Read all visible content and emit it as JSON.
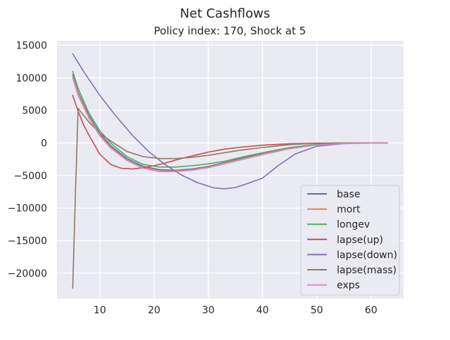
{
  "figure_title": "Net Cashflows",
  "chart_data": {
    "type": "line",
    "title": "Policy index: 170, Shock at 5",
    "xlabel": "",
    "ylabel": "",
    "xlim": [
      2.1,
      66.0
    ],
    "ylim": [
      -23900,
      15700
    ],
    "xticks": [
      10,
      20,
      30,
      40,
      50,
      60
    ],
    "yticks": [
      15000,
      10000,
      5000,
      0,
      -5000,
      -10000,
      -15000,
      -20000
    ],
    "grid": true,
    "legend_position": "lower-right",
    "series": [
      {
        "name": "base",
        "color": "#4c72b0",
        "x": [
          5,
          6,
          8,
          10,
          12,
          15,
          18,
          21,
          24,
          27,
          30,
          33,
          36,
          40,
          45,
          50,
          55,
          60,
          63
        ],
        "y": [
          10500,
          7800,
          4200,
          1500,
          -400,
          -2400,
          -3600,
          -4100,
          -4200,
          -4000,
          -3600,
          -3000,
          -2400,
          -1600,
          -800,
          -200,
          -50,
          0,
          0
        ]
      },
      {
        "name": "mort",
        "color": "#dd8452",
        "x": [
          5,
          6,
          8,
          10,
          12,
          15,
          18,
          21,
          24,
          27,
          30,
          33,
          36,
          40,
          45,
          50,
          55,
          60,
          63
        ],
        "y": [
          10300,
          7600,
          4000,
          1300,
          -600,
          -2600,
          -3800,
          -4300,
          -4300,
          -4100,
          -3700,
          -3100,
          -2500,
          -1700,
          -800,
          -200,
          -50,
          0,
          0
        ]
      },
      {
        "name": "longev",
        "color": "#55a868",
        "x": [
          5,
          6,
          8,
          10,
          12,
          15,
          18,
          21,
          24,
          27,
          30,
          33,
          36,
          40,
          45,
          50,
          55,
          60,
          63
        ],
        "y": [
          11000,
          8400,
          4600,
          1900,
          0,
          -2100,
          -3300,
          -3700,
          -3700,
          -3500,
          -3200,
          -2800,
          -2200,
          -1500,
          -700,
          -200,
          -50,
          0,
          0
        ]
      },
      {
        "name": "lapse(up)",
        "color": "#c44e52",
        "x": [
          5,
          6,
          7,
          8,
          10,
          12,
          14,
          16,
          18,
          20,
          22,
          25,
          28,
          30,
          33,
          36,
          40,
          45,
          50,
          55,
          60,
          63
        ],
        "y": [
          7300,
          4900,
          2800,
          1200,
          -1700,
          -3300,
          -3900,
          -4000,
          -3800,
          -3500,
          -3100,
          -2400,
          -1800,
          -1400,
          -950,
          -650,
          -350,
          -120,
          -30,
          0,
          0,
          0
        ]
      },
      {
        "name": "lapse(down)",
        "color": "#8172b2",
        "x": [
          5,
          7,
          10,
          13,
          16,
          19,
          22,
          25,
          28,
          31,
          33,
          35,
          37,
          40,
          43,
          46,
          50,
          55,
          60,
          63
        ],
        "y": [
          13700,
          11000,
          7300,
          4100,
          1200,
          -1300,
          -3300,
          -4900,
          -6100,
          -6900,
          -7050,
          -6850,
          -6300,
          -5400,
          -3400,
          -1700,
          -500,
          -100,
          -20,
          0
        ]
      },
      {
        "name": "lapse(mass)",
        "color": "#937860",
        "x": [
          5,
          5.5,
          6,
          8,
          10,
          12,
          15,
          18,
          21,
          24,
          27,
          30,
          33,
          36,
          40,
          45,
          50,
          55,
          60,
          63
        ],
        "y": [
          -22300,
          -8000,
          5300,
          3200,
          1500,
          300,
          -1300,
          -2100,
          -2400,
          -2400,
          -2200,
          -1900,
          -1500,
          -1100,
          -700,
          -250,
          -50,
          0,
          0,
          0
        ]
      },
      {
        "name": "exps",
        "color": "#da8bc3",
        "x": [
          5,
          6,
          8,
          10,
          12,
          15,
          18,
          21,
          24,
          27,
          30,
          33,
          36,
          40,
          45,
          50,
          55,
          60,
          63
        ],
        "y": [
          10000,
          7300,
          3800,
          1100,
          -800,
          -2700,
          -3900,
          -4400,
          -4400,
          -4200,
          -3800,
          -3200,
          -2600,
          -1800,
          -900,
          -300,
          -60,
          0,
          0
        ]
      }
    ]
  }
}
